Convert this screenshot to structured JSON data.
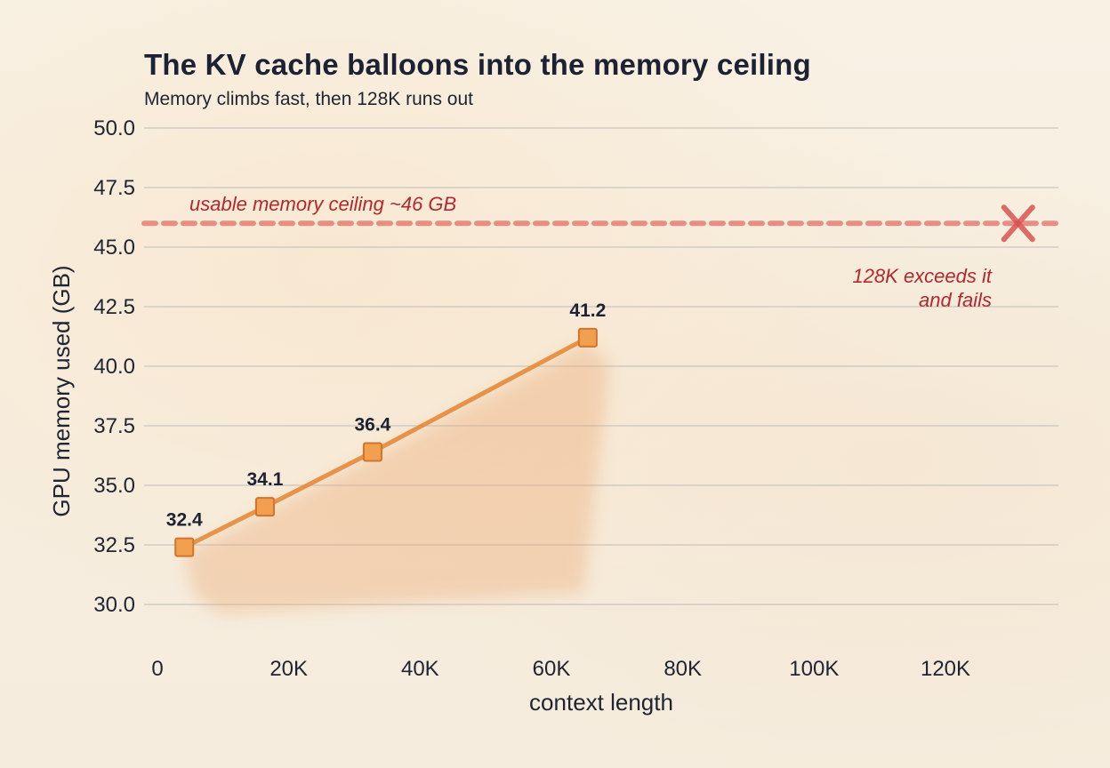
{
  "chart_data": {
    "type": "line",
    "title": "The KV cache balloons into the memory ceiling",
    "subtitle": "Memory climbs fast, then 128K runs out",
    "xlabel": "context length",
    "ylabel": "GPU memory used (GB)",
    "xlim": [
      0,
      139000
    ],
    "ylim": [
      28,
      50
    ],
    "x_ticks": [
      0,
      20000,
      40000,
      60000,
      80000,
      100000,
      120000
    ],
    "x_tick_labels": [
      "0",
      "20K",
      "40K",
      "60K",
      "80K",
      "100K",
      "120K"
    ],
    "y_ticks": [
      30,
      32.5,
      35,
      37.5,
      40,
      42.5,
      45,
      47.5,
      50
    ],
    "y_tick_labels": [
      "30.0",
      "32.5",
      "35.0",
      "37.5",
      "40.0",
      "42.5",
      "45.0",
      "47.5",
      "50.0"
    ],
    "grid": "horizontal",
    "series": [
      {
        "x": [
          4096,
          16384,
          32768,
          65536
        ],
        "values": [
          32.4,
          34.1,
          36.4,
          41.2
        ],
        "labels": [
          "32.4",
          "34.1",
          "36.4",
          "41.2"
        ],
        "color": "#e58a3a",
        "marker": "square"
      }
    ],
    "ceiling": {
      "value": 46,
      "label": "usable memory ceiling ~46 GB",
      "color": "#d9534f"
    },
    "failure": {
      "x": 131072,
      "y": 46,
      "marker": "x",
      "color": "#d9534f",
      "label_line1": "128K exceeds it",
      "label_line2": "and fails"
    }
  }
}
